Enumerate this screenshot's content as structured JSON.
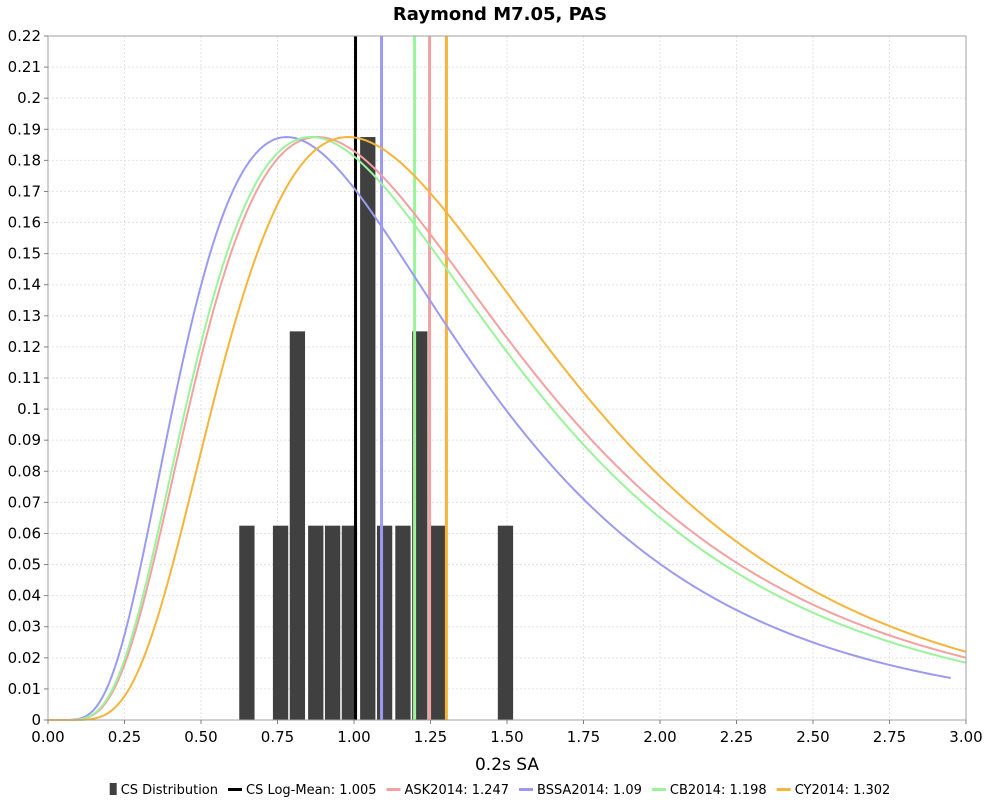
{
  "chart_data": {
    "type": "histogram-with-lognormal-curves",
    "title": "Raymond M7.05, PAS",
    "xlabel": "0.2s SA",
    "ylabel": "",
    "xlim": [
      0,
      3
    ],
    "ylim": [
      0,
      0.22
    ],
    "grid": true,
    "legend_position": "bottom",
    "x_ticks": [
      "0.00",
      "0.25",
      "0.50",
      "0.75",
      "1.00",
      "1.25",
      "1.50",
      "1.75",
      "2.00",
      "2.25",
      "2.50",
      "2.75",
      "3.00"
    ],
    "y_ticks": [
      "0",
      "0.01",
      "0.02",
      "0.03",
      "0.04",
      "0.05",
      "0.06",
      "0.07",
      "0.08",
      "0.09",
      "0.1",
      "0.11",
      "0.12",
      "0.13",
      "0.14",
      "0.15",
      "0.16",
      "0.17",
      "0.18",
      "0.19",
      "0.2",
      "0.21",
      "0.22"
    ],
    "histogram": {
      "name": "CS Distribution",
      "color": "#404040",
      "bins": [
        {
          "x0": 0.625,
          "x1": 0.675,
          "value": 0.0625
        },
        {
          "x0": 0.735,
          "x1": 0.785,
          "value": 0.0625
        },
        {
          "x0": 0.79,
          "x1": 0.84,
          "value": 0.125
        },
        {
          "x0": 0.85,
          "x1": 0.9,
          "value": 0.0625
        },
        {
          "x0": 0.905,
          "x1": 0.955,
          "value": 0.0625
        },
        {
          "x0": 0.96,
          "x1": 1.01,
          "value": 0.0625
        },
        {
          "x0": 1.02,
          "x1": 1.07,
          "value": 0.1875
        },
        {
          "x0": 1.075,
          "x1": 1.125,
          "value": 0.0625
        },
        {
          "x0": 1.135,
          "x1": 1.185,
          "value": 0.0625
        },
        {
          "x0": 1.19,
          "x1": 1.24,
          "value": 0.125
        },
        {
          "x0": 1.25,
          "x1": 1.3,
          "value": 0.0625
        },
        {
          "x0": 1.47,
          "x1": 1.52,
          "value": 0.0625
        }
      ]
    },
    "vertical_lines": [
      {
        "name": "CS Log-Mean",
        "value": 1.005,
        "color": "#000000",
        "width": 3
      },
      {
        "name": "ASK2014",
        "value": 1.247,
        "color": "#f4a0a0",
        "width": 3
      },
      {
        "name": "BSSA2014",
        "value": 1.09,
        "color": "#9a9af4",
        "width": 3
      },
      {
        "name": "CB2014",
        "value": 1.198,
        "color": "#9af49a",
        "width": 3
      },
      {
        "name": "CY2014",
        "value": 1.302,
        "color": "#f7b43a",
        "width": 3
      }
    ],
    "curves": [
      {
        "name": "ASK2014",
        "color": "#f4a0a0",
        "peak_x": 0.88,
        "peak_y": 0.1875,
        "sigma": 0.58,
        "x_end": 3.0
      },
      {
        "name": "BSSA2014",
        "color": "#9a9af4",
        "peak_x": 0.78,
        "peak_y": 0.1875,
        "sigma": 0.58,
        "x_end": 2.95
      },
      {
        "name": "CB2014",
        "color": "#9af49a",
        "peak_x": 0.86,
        "peak_y": 0.1875,
        "sigma": 0.58,
        "x_end": 3.0
      },
      {
        "name": "CY2014",
        "color": "#f7b43a",
        "peak_x": 0.98,
        "peak_y": 0.1875,
        "sigma": 0.54,
        "x_end": 3.0
      }
    ],
    "legend": [
      {
        "label": "CS Distribution",
        "color": "#404040",
        "kind": "bar"
      },
      {
        "label": "CS Log-Mean: 1.005",
        "color": "#000000",
        "kind": "line"
      },
      {
        "label": "ASK2014: 1.247",
        "color": "#f4a0a0",
        "kind": "line"
      },
      {
        "label": "BSSA2014: 1.09",
        "color": "#9a9af4",
        "kind": "line"
      },
      {
        "label": "CB2014: 1.198",
        "color": "#9af49a",
        "kind": "line"
      },
      {
        "label": "CY2014: 1.302",
        "color": "#f7b43a",
        "kind": "line"
      }
    ]
  }
}
